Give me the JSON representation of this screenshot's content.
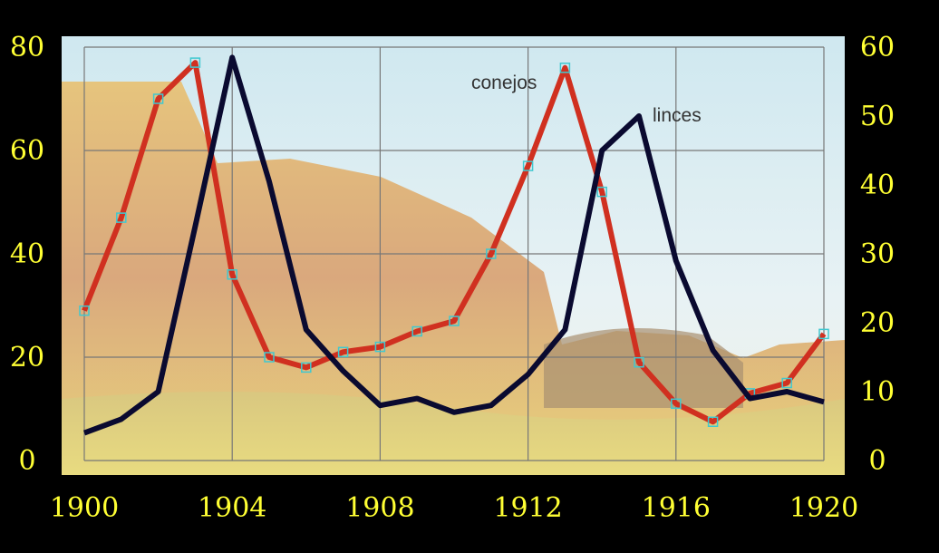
{
  "chart_data": {
    "type": "line",
    "title": "",
    "xlabel": "",
    "ylabel": "",
    "y2label": "",
    "x": [
      1900,
      1901,
      1902,
      1903,
      1904,
      1905,
      1906,
      1907,
      1908,
      1909,
      1910,
      1911,
      1912,
      1913,
      1914,
      1915,
      1916,
      1917,
      1918,
      1919,
      1920
    ],
    "xlim": [
      1900,
      1920
    ],
    "xticks": [
      "1900",
      "1904",
      "1908",
      "1912",
      "1916",
      "1920"
    ],
    "ylim": [
      0,
      80
    ],
    "yticks": [
      "0",
      "20",
      "40",
      "60",
      "80"
    ],
    "y2lim": [
      0,
      60
    ],
    "y2ticks": [
      "0",
      "10",
      "20",
      "30",
      "40",
      "50",
      "60"
    ],
    "grid": true,
    "series": [
      {
        "name": "conejos",
        "axis": "left",
        "color": "#d03020",
        "marker": "square",
        "marker_color": "#40c8d0",
        "values": [
          29,
          47,
          70,
          77,
          36,
          20,
          18,
          21,
          22,
          25,
          27,
          40,
          57,
          76,
          52,
          19,
          11,
          7.5,
          13,
          15,
          24.5
        ]
      },
      {
        "name": "linces",
        "axis": "right",
        "color": "#0a0a30",
        "marker": "none",
        "values": [
          4,
          6,
          10,
          34,
          58.5,
          40.5,
          19,
          13,
          8,
          9,
          7,
          8,
          12.5,
          19,
          45,
          50,
          29,
          16,
          9,
          10,
          8.5
        ]
      }
    ]
  }
}
